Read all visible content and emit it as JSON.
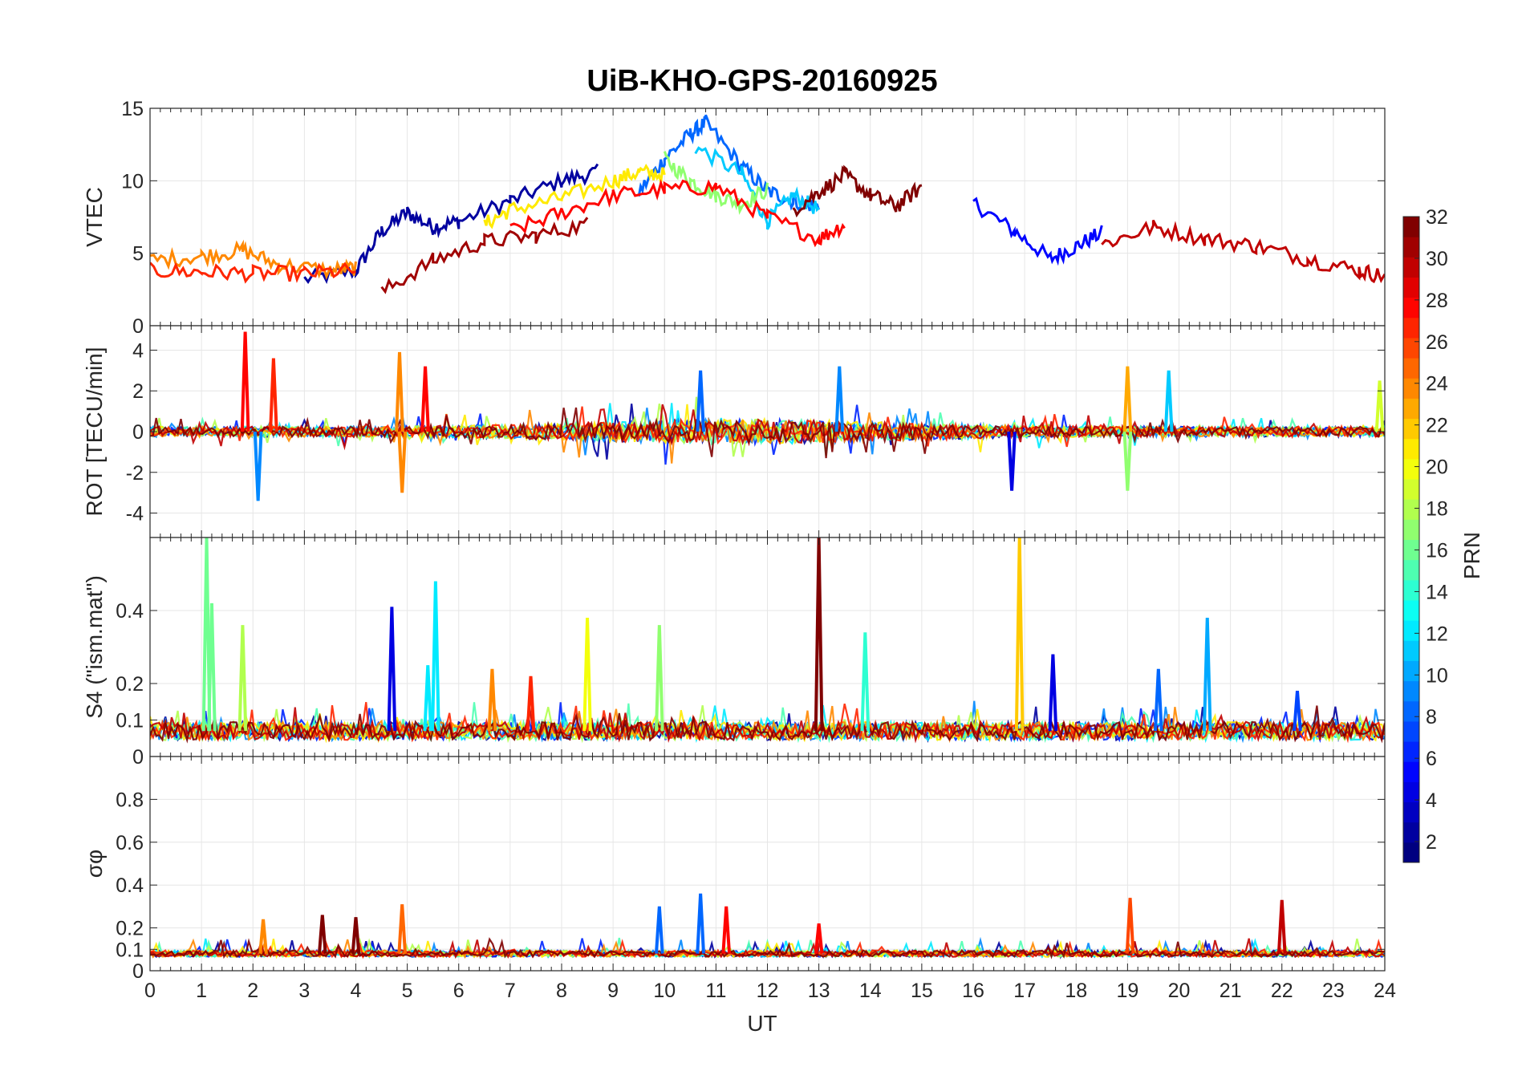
{
  "chart_data": {
    "type": "line",
    "title": "UiB-KHO-GPS-20160925",
    "xlabel": "UT",
    "x_range": [
      0,
      24
    ],
    "x_ticks": [
      "0",
      "1",
      "2",
      "3",
      "4",
      "5",
      "6",
      "7",
      "8",
      "9",
      "10",
      "11",
      "12",
      "13",
      "14",
      "15",
      "16",
      "17",
      "18",
      "19",
      "20",
      "21",
      "22",
      "23",
      "24"
    ],
    "grid": true,
    "panels": [
      {
        "ylabel": "VTEC",
        "ylim": [
          0,
          15
        ],
        "y_ticks": [
          "0",
          "5",
          "10",
          "15"
        ],
        "series": [
          {
            "prn": 2,
            "x": [
              3.0,
              4.0,
              4.5,
              5.0,
              5.5,
              6.0,
              7.0,
              8.0,
              8.7
            ],
            "y": [
              3.2,
              3.8,
              6.5,
              7.8,
              6.8,
              7.2,
              8.6,
              10.0,
              10.6
            ]
          },
          {
            "prn": 5,
            "x": [
              16.0,
              16.8,
              17.5,
              18.0,
              18.5
            ],
            "y": [
              8.5,
              6.5,
              4.6,
              5.5,
              6.4
            ]
          },
          {
            "prn": 8,
            "x": [
              9.5,
              10.0,
              10.5,
              10.8,
              11.5,
              12.0,
              12.5,
              13.0
            ],
            "y": [
              9.2,
              11.5,
              13.2,
              14.0,
              11.0,
              9.3,
              8.6,
              8.2
            ]
          },
          {
            "prn": 11,
            "x": [
              10.6,
              11.5,
              12.0,
              12.5,
              13.0
            ],
            "y": [
              12.3,
              10.5,
              7.2,
              9.0,
              8.0
            ]
          },
          {
            "prn": 17,
            "x": [
              10.0,
              10.5,
              11.0,
              11.5,
              12.0
            ],
            "y": [
              11.5,
              10.0,
              9.0,
              8.4,
              9.4
            ]
          },
          {
            "prn": 21,
            "x": [
              6.5,
              7.0,
              8.0,
              9.0,
              9.5,
              10.0
            ],
            "y": [
              7.0,
              8.0,
              8.8,
              10.0,
              10.6,
              10.4
            ]
          },
          {
            "prn": 24,
            "x": [
              0.0,
              1.0,
              1.8,
              2.5,
              3.5,
              4.0
            ],
            "y": [
              4.5,
              4.8,
              5.2,
              4.2,
              3.8,
              4.0
            ]
          },
          {
            "prn": 27,
            "x": [
              0.0,
              1.0,
              2.0,
              3.0,
              4.0
            ],
            "y": [
              3.8,
              3.7,
              3.6,
              3.6,
              3.8
            ]
          },
          {
            "prn": 28,
            "x": [
              7.0,
              8.0,
              9.0,
              10.0,
              11.0,
              12.0,
              13.0,
              13.5
            ],
            "y": [
              6.5,
              7.8,
              9.0,
              9.4,
              9.6,
              7.5,
              6.0,
              7.0
            ]
          },
          {
            "prn": 30,
            "x": [
              18.5,
              19.5,
              20.5,
              21.5,
              22.5,
              23.5,
              24.0
            ],
            "y": [
              5.6,
              6.8,
              6.0,
              5.5,
              4.6,
              3.8,
              3.4
            ]
          },
          {
            "prn": 31,
            "x": [
              4.5,
              5.5,
              6.5,
              7.5,
              8.5
            ],
            "y": [
              2.3,
              4.5,
              5.8,
              6.2,
              7.0
            ]
          },
          {
            "prn": 32,
            "x": [
              12.5,
              13.0,
              13.5,
              14.0,
              14.5,
              15.0
            ],
            "y": [
              8.0,
              9.2,
              10.4,
              9.0,
              8.2,
              9.6
            ]
          }
        ]
      },
      {
        "ylabel": "ROT [TECU/min]",
        "ylim": [
          -5.2,
          5.2
        ],
        "y_ticks": [
          "-4",
          "-2",
          "0",
          "2",
          "4"
        ],
        "series_note": "noisy fluctuations about 0 for all PRNs",
        "spikes": [
          {
            "x": 1.85,
            "y": 4.9,
            "prn": 28
          },
          {
            "x": 2.4,
            "y": 3.6,
            "prn": 27
          },
          {
            "x": 2.1,
            "y": -3.4,
            "prn": 9
          },
          {
            "x": 4.85,
            "y": 3.9,
            "prn": 24
          },
          {
            "x": 4.9,
            "y": -3.0,
            "prn": 24
          },
          {
            "x": 5.35,
            "y": 3.2,
            "prn": 28
          },
          {
            "x": 10.7,
            "y": 3.0,
            "prn": 8
          },
          {
            "x": 13.4,
            "y": 3.2,
            "prn": 9
          },
          {
            "x": 16.75,
            "y": -2.9,
            "prn": 4
          },
          {
            "x": 19.0,
            "y": 3.2,
            "prn": 23
          },
          {
            "x": 19.0,
            "y": -2.9,
            "prn": 17
          },
          {
            "x": 19.8,
            "y": 3.0,
            "prn": 11
          },
          {
            "x": 23.9,
            "y": 2.5,
            "prn": 19
          }
        ]
      },
      {
        "ylabel": "S4 (\"ism.mat\")",
        "ylim": [
          0,
          0.6
        ],
        "y_ticks": [
          "0",
          "0.1",
          "0.2",
          "0.4"
        ],
        "baseline": 0.07,
        "spikes": [
          {
            "x": 1.1,
            "y": 0.6,
            "prn": 16
          },
          {
            "x": 1.2,
            "y": 0.42,
            "prn": 16
          },
          {
            "x": 1.8,
            "y": 0.36,
            "prn": 18
          },
          {
            "x": 4.7,
            "y": 0.41,
            "prn": 4
          },
          {
            "x": 5.55,
            "y": 0.48,
            "prn": 12
          },
          {
            "x": 5.4,
            "y": 0.25,
            "prn": 12
          },
          {
            "x": 6.65,
            "y": 0.24,
            "prn": 24
          },
          {
            "x": 7.4,
            "y": 0.22,
            "prn": 27
          },
          {
            "x": 8.5,
            "y": 0.38,
            "prn": 20
          },
          {
            "x": 9.9,
            "y": 0.36,
            "prn": 17
          },
          {
            "x": 13.0,
            "y": 0.6,
            "prn": 32
          },
          {
            "x": 13.9,
            "y": 0.34,
            "prn": 14
          },
          {
            "x": 16.9,
            "y": 0.6,
            "prn": 22
          },
          {
            "x": 17.55,
            "y": 0.28,
            "prn": 4
          },
          {
            "x": 19.6,
            "y": 0.24,
            "prn": 8
          },
          {
            "x": 20.55,
            "y": 0.38,
            "prn": 10
          },
          {
            "x": 22.3,
            "y": 0.18,
            "prn": 7
          }
        ]
      },
      {
        "ylabel": "σφ",
        "ylim": [
          0,
          1
        ],
        "y_ticks": [
          "0",
          "0.1",
          "0.2",
          "0.4",
          "0.6",
          "0.8"
        ],
        "baseline": 0.08,
        "spikes": [
          {
            "x": 2.2,
            "y": 0.24,
            "prn": 24
          },
          {
            "x": 3.35,
            "y": 0.26,
            "prn": 32
          },
          {
            "x": 4.0,
            "y": 0.25,
            "prn": 32
          },
          {
            "x": 4.9,
            "y": 0.31,
            "prn": 25
          },
          {
            "x": 9.9,
            "y": 0.3,
            "prn": 8
          },
          {
            "x": 10.7,
            "y": 0.36,
            "prn": 8
          },
          {
            "x": 11.2,
            "y": 0.3,
            "prn": 28
          },
          {
            "x": 13.0,
            "y": 0.22,
            "prn": 28
          },
          {
            "x": 19.05,
            "y": 0.34,
            "prn": 26
          },
          {
            "x": 22.0,
            "y": 0.33,
            "prn": 30
          }
        ]
      }
    ],
    "colorbar": {
      "label": "PRN",
      "range": [
        1,
        32
      ],
      "ticks": [
        "2",
        "4",
        "6",
        "8",
        "10",
        "12",
        "14",
        "16",
        "18",
        "20",
        "22",
        "24",
        "26",
        "28",
        "30",
        "32"
      ],
      "colormap": "jet"
    }
  }
}
